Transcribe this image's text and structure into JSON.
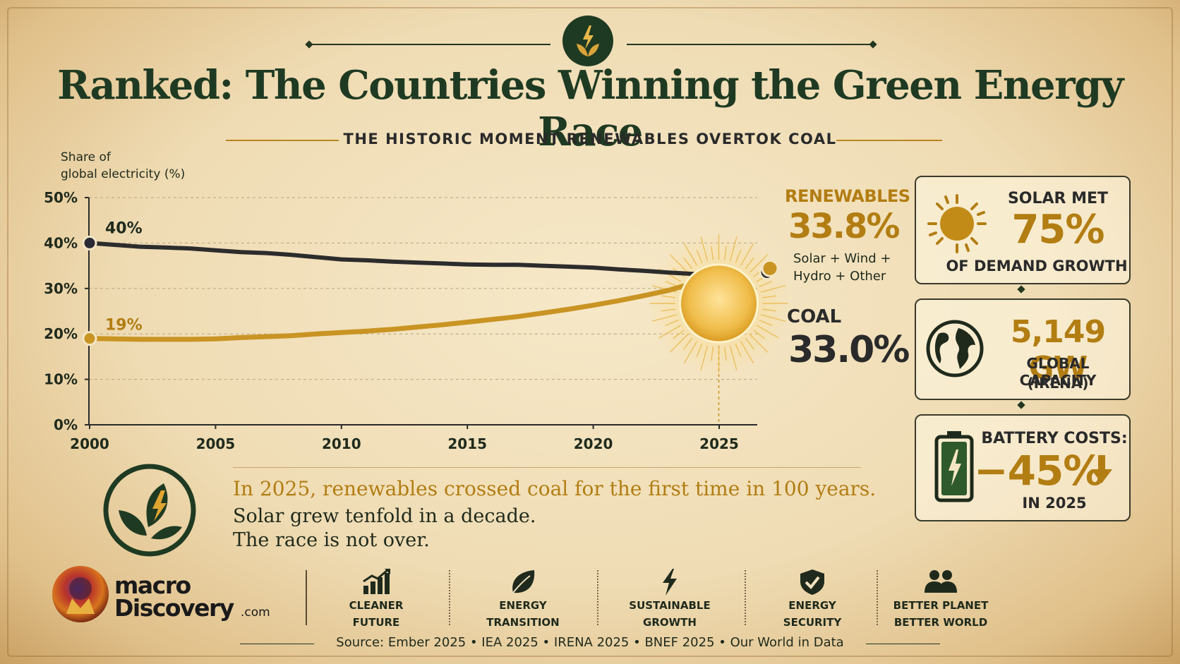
{
  "header": {
    "title": "Ranked: The Countries Winning the Green Energy Race",
    "subtitle": "THE HISTORIC MOMENT RENEWABLES OVERTOK COAL"
  },
  "colors": {
    "renewables": "#c99423",
    "coal": "#2c2c2c",
    "accent": "#b27d12",
    "dark_green": "#1f3a22"
  },
  "chart_data": {
    "type": "line",
    "ylabel": "Share of\nglobal electricity (%)",
    "ylim": [
      0,
      50
    ],
    "yticks": [
      0,
      10,
      20,
      30,
      40,
      50
    ],
    "ytick_labels": [
      "0%",
      "10%",
      "20%",
      "30%",
      "40%",
      "50%"
    ],
    "xlim": [
      2000,
      2026
    ],
    "xticks": [
      2000,
      2005,
      2010,
      2015,
      2020,
      2025
    ],
    "grid": true,
    "x": [
      2000,
      2001,
      2002,
      2003,
      2004,
      2005,
      2006,
      2007,
      2008,
      2009,
      2010,
      2011,
      2012,
      2013,
      2014,
      2015,
      2016,
      2017,
      2018,
      2019,
      2020,
      2021,
      2022,
      2023,
      2024,
      2025
    ],
    "series": [
      {
        "name": "COAL",
        "values": [
          40,
          39.6,
          39.2,
          39,
          38.8,
          38.4,
          38,
          37.8,
          37.4,
          36.9,
          36.4,
          36.2,
          35.9,
          35.7,
          35.5,
          35.3,
          35.2,
          35.2,
          35,
          34.8,
          34.6,
          34.2,
          33.9,
          33.5,
          33.2,
          33.0
        ]
      },
      {
        "name": "RENEWABLES",
        "values": [
          19,
          18.9,
          18.8,
          18.8,
          18.8,
          18.9,
          19.2,
          19.4,
          19.6,
          20,
          20.3,
          20.6,
          21,
          21.5,
          22,
          22.6,
          23.2,
          23.8,
          24.6,
          25.4,
          26.3,
          27.3,
          28.4,
          29.6,
          31.2,
          33.8
        ]
      }
    ],
    "annotations": {
      "coal_start_label": "40%",
      "renew_start_label": "19%",
      "crossover_year_label": "2025",
      "crossover_note_1": "First time",
      "crossover_note_2": "in 100 years"
    }
  },
  "side": {
    "renewables_title": "RENEWABLES",
    "renewables_value": "33.8%",
    "renewables_desc_1": "Solar + Wind +",
    "renewables_desc_2": "Hydro + Other",
    "coal_title": "COAL",
    "coal_value": "33.0%"
  },
  "cards": [
    {
      "icon": "sun-icon",
      "line1": "SOLAR MET",
      "value": "75%",
      "line2": "OF DEMAND GROWTH"
    },
    {
      "icon": "globe-icon",
      "value": "5,149 GW",
      "line1": "GLOBAL CAPACITY",
      "line2": "(IRENA)"
    },
    {
      "icon": "battery-icon",
      "line1": "BATTERY COSTS:",
      "value": "−45%",
      "line2": "IN 2025"
    }
  ],
  "quote": {
    "line1": "In 2025, renewables crossed coal for the first time in 100 years.",
    "line2": "Solar grew tenfold in a decade.",
    "line3": "The race is not over."
  },
  "brand": {
    "name_1": "macro",
    "name_2": "Discovery",
    "suffix": ".com"
  },
  "features": [
    {
      "icon": "bar-growth-icon",
      "line1": "CLEANER",
      "line2": "FUTURE"
    },
    {
      "icon": "leaf-icon",
      "line1": "ENERGY",
      "line2": "TRANSITION"
    },
    {
      "icon": "lightning-icon",
      "line1": "SUSTAINABLE",
      "line2": "GROWTH"
    },
    {
      "icon": "shield-check-icon",
      "line1": "ENERGY",
      "line2": "SECURITY"
    },
    {
      "icon": "people-icon",
      "line1": "BETTER PLANET",
      "line2": "BETTER WORLD"
    }
  ],
  "footer": {
    "source": "Source: Ember 2025  •  IEA 2025  •  IRENA 2025  •  BNEF 2025  •  Our World in Data"
  }
}
